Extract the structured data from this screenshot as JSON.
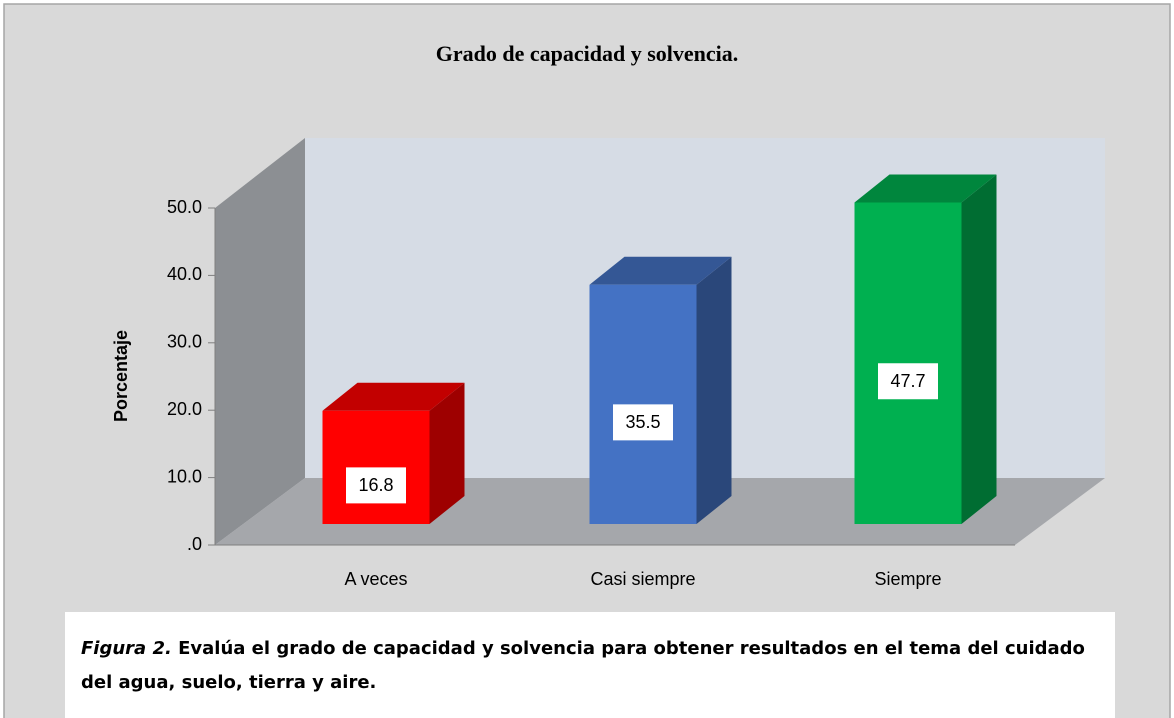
{
  "chart_data": {
    "type": "bar3d",
    "title": "Grado de capacidad y solvencia.",
    "y_label": "Porcentaje",
    "categories": [
      "A veces",
      "Casi siempre",
      "Siempre"
    ],
    "values": [
      16.8,
      35.5,
      47.7
    ],
    "colors": [
      "#ff0000",
      "#4472c4",
      "#00b050"
    ],
    "ylim": [
      0,
      50
    ],
    "yticks": [
      {
        "value": 0,
        "label": ".0"
      },
      {
        "value": 10,
        "label": "10.0"
      },
      {
        "value": 20,
        "label": "20.0"
      },
      {
        "value": 30,
        "label": "30.0"
      },
      {
        "value": 40,
        "label": "40.0"
      },
      {
        "value": 50,
        "label": "50.0"
      }
    ]
  },
  "caption": {
    "label": "Figura 2.",
    "text": " Evalúa el grado de capacidad y solvencia para obtener resultados en el tema del cuidado del agua, suelo, tierra y aire."
  }
}
